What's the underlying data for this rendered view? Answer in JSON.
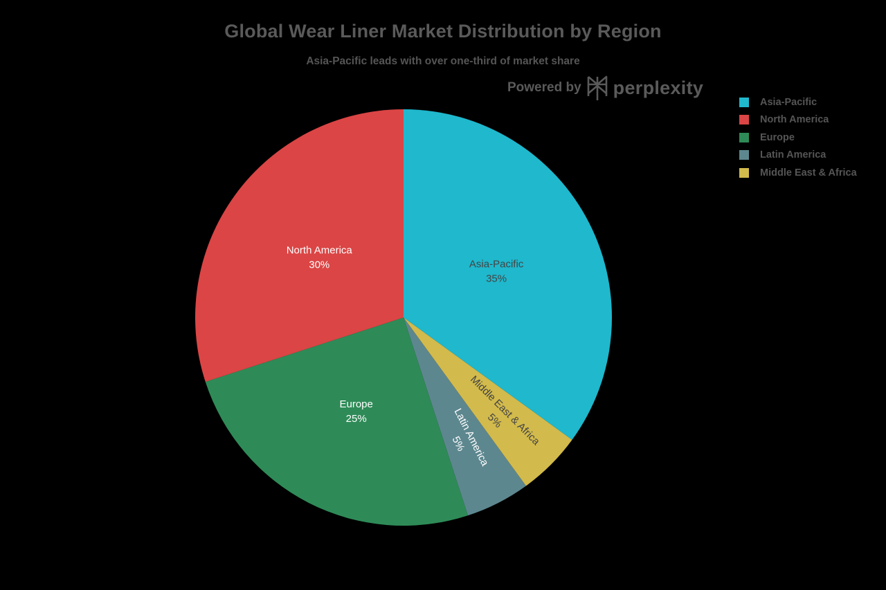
{
  "header": {
    "title": "Global Wear Liner Market Distribution by Region",
    "subtitle": "Asia-Pacific leads with over one-third of market share",
    "powered_by": "Powered by",
    "brand": "perplexity"
  },
  "legend": {
    "items": [
      {
        "label": "Asia-Pacific",
        "color": "#1FB8CD"
      },
      {
        "label": "North America",
        "color": "#DB4545"
      },
      {
        "label": "Europe",
        "color": "#2E8B57"
      },
      {
        "label": "Latin America",
        "color": "#5D878F"
      },
      {
        "label": "Middle East & Africa",
        "color": "#D2BA4C"
      }
    ]
  },
  "chart_data": {
    "type": "pie",
    "title": "Global Wear Liner Market Distribution by Region",
    "subtitle": "Asia-Pacific leads with over one-third of market share",
    "categories": [
      "Asia-Pacific",
      "North America",
      "Europe",
      "Latin America",
      "Middle East & Africa"
    ],
    "values": [
      35,
      30,
      25,
      5,
      5
    ],
    "unit": "%",
    "colors": [
      "#1FB8CD",
      "#DB4545",
      "#2E8B57",
      "#5D878F",
      "#D2BA4C"
    ],
    "direction": "clockwise",
    "start_angle": "12 o'clock",
    "clockwise_order": [
      "Asia-Pacific",
      "Middle East & Africa",
      "Latin America",
      "Europe",
      "North America"
    ],
    "slice_labels": [
      {
        "category": "Asia-Pacific",
        "text": "Asia-Pacific",
        "pct": "35%",
        "text_color": "#444444"
      },
      {
        "category": "North America",
        "text": "North America",
        "pct": "30%",
        "text_color": "#ffffff"
      },
      {
        "category": "Europe",
        "text": "Europe",
        "pct": "25%",
        "text_color": "#ffffff"
      },
      {
        "category": "Latin America",
        "text": "Latin America",
        "pct": "5%",
        "text_color": "#ffffff"
      },
      {
        "category": "Middle East & Africa",
        "text": "Middle East & Africa",
        "pct": "5%",
        "text_color": "#444444"
      }
    ],
    "legend_position": "top-right"
  }
}
